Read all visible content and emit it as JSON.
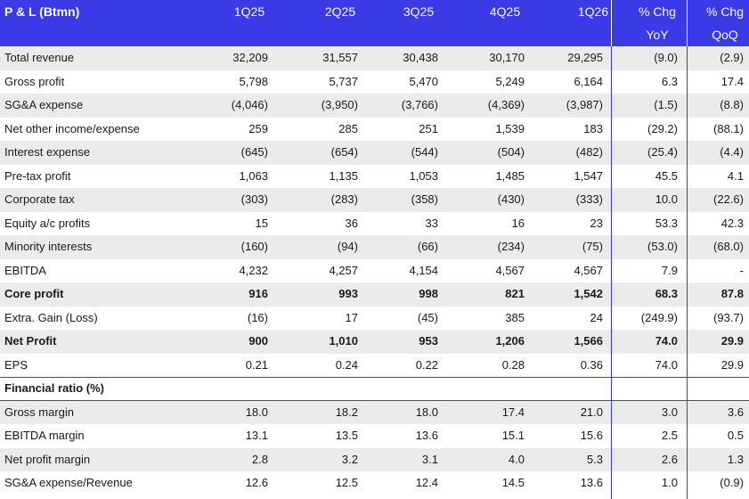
{
  "header": {
    "title": "P & L (Btmn)",
    "periods": [
      "1Q25",
      "2Q25",
      "3Q25",
      "4Q25",
      "1Q26"
    ],
    "chg_yoy_line1": "% Chg",
    "chg_yoy_line2": "YoY",
    "chg_qoq_line1": "% Chg",
    "chg_qoq_line2": "QoQ"
  },
  "rows": [
    {
      "label": "Total revenue",
      "values": [
        "32,209",
        "31,557",
        "30,438",
        "30,170",
        "29,295",
        "(9.0)",
        "(2.9)"
      ],
      "bold": false
    },
    {
      "label": "Gross profit",
      "values": [
        "5,798",
        "5,737",
        "5,470",
        "5,249",
        "6,164",
        "6.3",
        "17.4"
      ],
      "bold": false
    },
    {
      "label": "SG&A expense",
      "values": [
        "(4,046)",
        "(3,950)",
        "(3,766)",
        "(4,369)",
        "(3,987)",
        "(1.5)",
        "(8.8)"
      ],
      "bold": false
    },
    {
      "label": "Net other income/expense",
      "values": [
        "259",
        "285",
        "251",
        "1,539",
        "183",
        "(29.2)",
        "(88.1)"
      ],
      "bold": false
    },
    {
      "label": "Interest expense",
      "values": [
        "(645)",
        "(654)",
        "(544)",
        "(504)",
        "(482)",
        "(25.4)",
        "(4.4)"
      ],
      "bold": false
    },
    {
      "label": "Pre-tax profit",
      "values": [
        "1,063",
        "1,135",
        "1,053",
        "1,485",
        "1,547",
        "45.5",
        "4.1"
      ],
      "bold": false
    },
    {
      "label": "Corporate tax",
      "values": [
        "(303)",
        "(283)",
        "(358)",
        "(430)",
        "(333)",
        "10.0",
        "(22.6)"
      ],
      "bold": false
    },
    {
      "label": "Equity a/c profits",
      "values": [
        "15",
        "36",
        "33",
        "16",
        "23",
        "53.3",
        "42.3"
      ],
      "bold": false
    },
    {
      "label": "Minority interests",
      "values": [
        "(160)",
        "(94)",
        "(66)",
        "(234)",
        "(75)",
        "(53.0)",
        "(68.0)"
      ],
      "bold": false
    },
    {
      "label": "EBITDA",
      "values": [
        "4,232",
        "4,257",
        "4,154",
        "4,567",
        "4,567",
        "7.9",
        "-"
      ],
      "bold": false
    },
    {
      "label": "Core profit",
      "values": [
        "916",
        "993",
        "998",
        "821",
        "1,542",
        "68.3",
        "87.8"
      ],
      "bold": true
    },
    {
      "label": "Extra. Gain (Loss)",
      "values": [
        "(16)",
        "17",
        "(45)",
        "385",
        "24",
        "(249.9)",
        "(93.7)"
      ],
      "bold": false
    },
    {
      "label": "Net Profit",
      "values": [
        "900",
        "1,010",
        "953",
        "1,206",
        "1,566",
        "74.0",
        "29.9"
      ],
      "bold": true
    },
    {
      "label": "EPS",
      "values": [
        "0.21",
        "0.24",
        "0.22",
        "0.28",
        "0.36",
        "74.0",
        "29.9"
      ],
      "bold": false
    }
  ],
  "ratio_section": {
    "title": "Financial ratio (%)",
    "rows": [
      {
        "label": "Gross margin",
        "values": [
          "18.0",
          "18.2",
          "18.0",
          "17.4",
          "21.0",
          "3.0",
          "3.6"
        ]
      },
      {
        "label": "EBITDA margin",
        "values": [
          "13.1",
          "13.5",
          "13.6",
          "15.1",
          "15.6",
          "2.5",
          "0.5"
        ]
      },
      {
        "label": "Net profit margin",
        "values": [
          "2.8",
          "3.2",
          "3.1",
          "4.0",
          "5.3",
          "2.6",
          "1.3"
        ]
      },
      {
        "label": "SG&A expense/Revenue",
        "values": [
          "12.6",
          "12.5",
          "12.4",
          "14.5",
          "13.6",
          "1.0",
          "(0.9)"
        ]
      }
    ]
  },
  "colors": {
    "header_bg": "#3a3ae6",
    "header_text": "#ffffff",
    "alt_row_bg": "#ebebeb"
  }
}
